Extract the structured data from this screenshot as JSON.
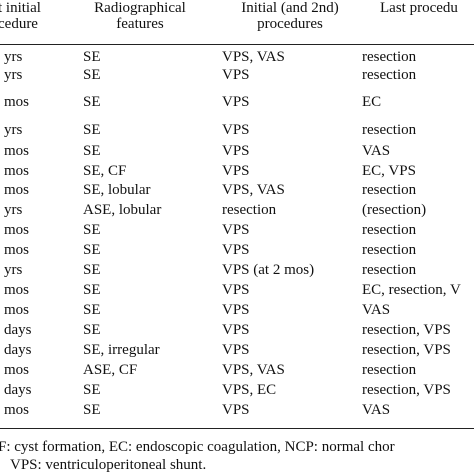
{
  "table": {
    "header": [
      [
        "t initial",
        "cedure"
      ],
      [
        "Radiographical",
        "features"
      ],
      [
        "Initial (and 2nd)",
        "procedures"
      ],
      [
        "Last procedu"
      ]
    ],
    "rows": [
      [
        "yrs",
        "SE",
        "VPS, VAS",
        "resection"
      ],
      [
        "yrs",
        "SE",
        "VPS",
        "resection"
      ],
      [
        "mos",
        "SE",
        "VPS",
        "EC"
      ],
      [
        "yrs",
        "SE",
        "VPS",
        "resection"
      ],
      [
        "mos",
        "SE",
        "VPS",
        "VAS"
      ],
      [
        "mos",
        "SE, CF",
        "VPS",
        "EC, VPS"
      ],
      [
        "mos",
        "SE, lobular",
        "VPS, VAS",
        "resection"
      ],
      [
        "yrs",
        "ASE, lobular",
        "resection",
        "(resection)"
      ],
      [
        "mos",
        "SE",
        "VPS",
        "resection"
      ],
      [
        "mos",
        "SE",
        "VPS",
        "resection"
      ],
      [
        "yrs",
        "SE",
        "VPS (at 2 mos)",
        "resection"
      ],
      [
        "mos",
        "SE",
        "VPS",
        "EC, resection, V"
      ],
      [
        "mos",
        "SE",
        "VPS",
        "VAS"
      ],
      [
        "days",
        "SE",
        "VPS",
        "resection, VPS"
      ],
      [
        "days",
        "SE, irregular",
        "VPS",
        "resection, VPS"
      ],
      [
        "mos",
        "ASE, CF",
        "VPS, VAS",
        "resection"
      ],
      [
        "days",
        "SE",
        "VPS, EC",
        "resection, VPS"
      ],
      [
        "mos",
        "SE",
        "VPS",
        "VAS"
      ]
    ]
  },
  "footnote": [
    "F: cyst formation, EC: endoscopic coagulation, NCP: normal chor",
    "VPS: ventriculoperitoneal shunt."
  ]
}
